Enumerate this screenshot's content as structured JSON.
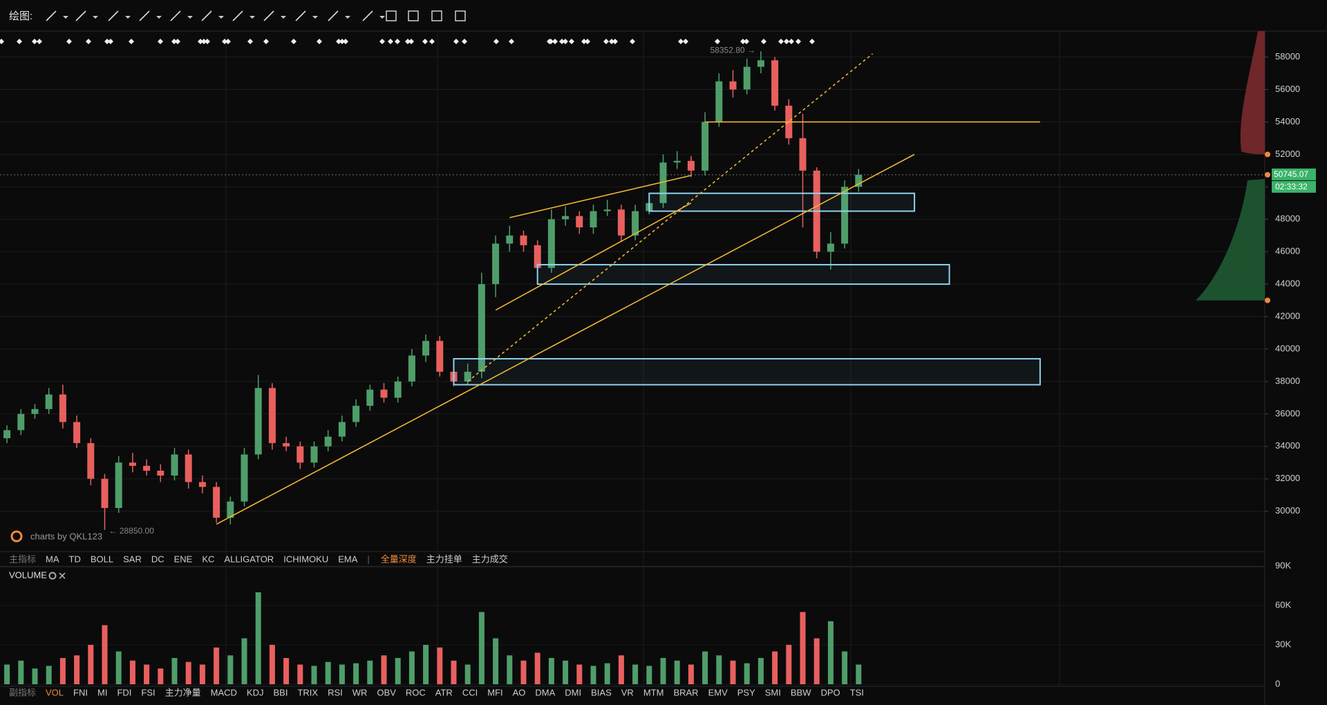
{
  "toolbar": {
    "label": "绘图:"
  },
  "chart_data": [
    {
      "type": "candlestick",
      "open": [
        34500,
        35000,
        36000,
        36300,
        37200,
        35500,
        34200,
        32000,
        30200,
        33000,
        32800,
        32500,
        32200,
        33500,
        31800,
        31500,
        29600,
        30600,
        33500,
        37600,
        34200,
        34000,
        33000,
        34000,
        34600,
        35500,
        36500,
        37500,
        37000,
        38000,
        39600,
        40500,
        38600,
        38000,
        38600,
        44000,
        46500,
        47000,
        46400,
        45000,
        48000,
        48200,
        47500,
        48500,
        48600,
        47000,
        48500,
        49000,
        51500,
        51600,
        51000,
        54000,
        56500,
        56000,
        57400,
        57800,
        55000,
        53000,
        51000,
        46000,
        46500,
        50000
      ],
      "high": [
        35300,
        36300,
        36600,
        37600,
        37800,
        35900,
        34500,
        32300,
        33400,
        33600,
        33200,
        32900,
        33900,
        33800,
        32200,
        31800,
        30900,
        33900,
        38400,
        37900,
        34600,
        34300,
        34300,
        35000,
        35900,
        36900,
        37800,
        37900,
        38300,
        40000,
        40900,
        40800,
        38900,
        39100,
        44700,
        47000,
        47600,
        47300,
        46700,
        48600,
        48800,
        48500,
        48900,
        49200,
        48900,
        48900,
        49500,
        52000,
        52200,
        51900,
        54600,
        57000,
        57200,
        57900,
        58352.8,
        58000,
        55400,
        54500,
        51200,
        47200,
        50400,
        51100
      ],
      "low": [
        34200,
        34700,
        35700,
        36000,
        35100,
        33900,
        31600,
        28850,
        29900,
        32400,
        32200,
        31800,
        31900,
        31400,
        31100,
        29300,
        29200,
        30300,
        33200,
        33800,
        33700,
        32600,
        32700,
        33700,
        34300,
        35200,
        36200,
        36700,
        36700,
        37700,
        39200,
        38300,
        37700,
        37800,
        38200,
        43200,
        46000,
        46000,
        44500,
        44700,
        47600,
        47100,
        47100,
        48200,
        46600,
        46700,
        48300,
        48700,
        51100,
        50600,
        50700,
        53700,
        55500,
        55700,
        57000,
        54700,
        52600,
        47500,
        45600,
        44900,
        46200,
        49700
      ],
      "close": [
        35000,
        36000,
        36300,
        37200,
        35500,
        34200,
        32000,
        30200,
        33000,
        32800,
        32500,
        32200,
        33500,
        31800,
        31500,
        29600,
        30600,
        33500,
        37600,
        34200,
        34000,
        33000,
        34000,
        34600,
        35500,
        36500,
        37500,
        37000,
        38000,
        39600,
        40500,
        38600,
        38000,
        38600,
        44000,
        46500,
        47000,
        46400,
        45000,
        48000,
        48200,
        47500,
        48500,
        48600,
        47000,
        48500,
        49000,
        51500,
        51600,
        51000,
        54000,
        56500,
        56000,
        57400,
        57800,
        55000,
        53000,
        51000,
        46000,
        46500,
        50000,
        50745.07
      ],
      "up_color": "#4f9e6a",
      "down_color": "#e8605e",
      "ylim": [
        27600,
        59600
      ],
      "yticks": [
        30000,
        32000,
        34000,
        36000,
        38000,
        40000,
        42000,
        44000,
        46000,
        48000,
        50000,
        52000,
        54000,
        56000,
        58000
      ],
      "grid": true,
      "high_label": "58352.80 →",
      "low_label": "← 28850.00",
      "countdown": "02:33:32",
      "zones": [
        {
          "top": 49600,
          "bottom": 48500,
          "from": 46,
          "to": 65
        },
        {
          "top": 45200,
          "bottom": 44000,
          "from": 38,
          "to": 67.5
        },
        {
          "top": 39400,
          "bottom": 37800,
          "from": 32,
          "to": 74
        }
      ],
      "levels": [
        {
          "price": 54000,
          "from": 50,
          "to": 74
        }
      ],
      "trendlines": [
        {
          "from": 15,
          "from_price": 29200,
          "to": 65,
          "to_price": 52000,
          "dashed": false
        },
        {
          "from": 33,
          "from_price": 38000,
          "to": 62,
          "to_price": 58200,
          "dashed": true
        },
        {
          "from": 36,
          "from_price": 48100,
          "to": 49,
          "to_price": 50700,
          "dashed": false
        },
        {
          "from": 35,
          "from_price": 42400,
          "to": 49,
          "to_price": 49000,
          "dashed": false
        }
      ],
      "depth_levels": [
        52000,
        43000
      ]
    },
    {
      "type": "bar",
      "title": "VOLUME",
      "values": [
        15000,
        18000,
        12000,
        14000,
        20000,
        22000,
        30000,
        45000,
        25000,
        18000,
        15000,
        12000,
        20000,
        17000,
        15000,
        28000,
        22000,
        35000,
        70000,
        30000,
        20000,
        15000,
        14000,
        17000,
        15000,
        16000,
        18000,
        22000,
        20000,
        25000,
        30000,
        28000,
        18000,
        15000,
        55000,
        35000,
        22000,
        18000,
        24000,
        20000,
        18000,
        15000,
        14000,
        16000,
        22000,
        15000,
        14000,
        20000,
        18000,
        15000,
        25000,
        22000,
        18000,
        16000,
        20000,
        25000,
        30000,
        55000,
        35000,
        48000,
        25000,
        15000
      ],
      "ylim": [
        0,
        90000
      ],
      "yticks": [
        0,
        {
          "value": 30000,
          "label": "30K"
        },
        {
          "value": 60000,
          "label": "60K"
        },
        {
          "value": 90000,
          "label": "90K"
        }
      ]
    }
  ],
  "main_indicators": {
    "label": "主指标",
    "items": [
      "MA",
      "TD",
      "BOLL",
      "SAR",
      "DC",
      "ENE",
      "KC",
      "ALLIGATOR",
      "ICHIMOKU",
      "EMA"
    ],
    "separator": "|",
    "depth_items": [
      "全量深度",
      "主力挂单",
      "主力成交"
    ]
  },
  "sub_indicators": {
    "label": "副指标",
    "items": [
      "VOL",
      "FNI",
      "MI",
      "FDI",
      "FSI",
      "主力净量",
      "MACD",
      "KDJ",
      "BBI",
      "TRIX",
      "RSI",
      "WR",
      "OBV",
      "ROC",
      "ATR",
      "CCI",
      "MFI",
      "AO",
      "DMA",
      "DMI",
      "BIAS",
      "VR",
      "MTM",
      "BRAR",
      "EMV",
      "PSY",
      "SMI",
      "BBW",
      "DPO",
      "TSI"
    ]
  },
  "watermark": "charts by QKL123"
}
